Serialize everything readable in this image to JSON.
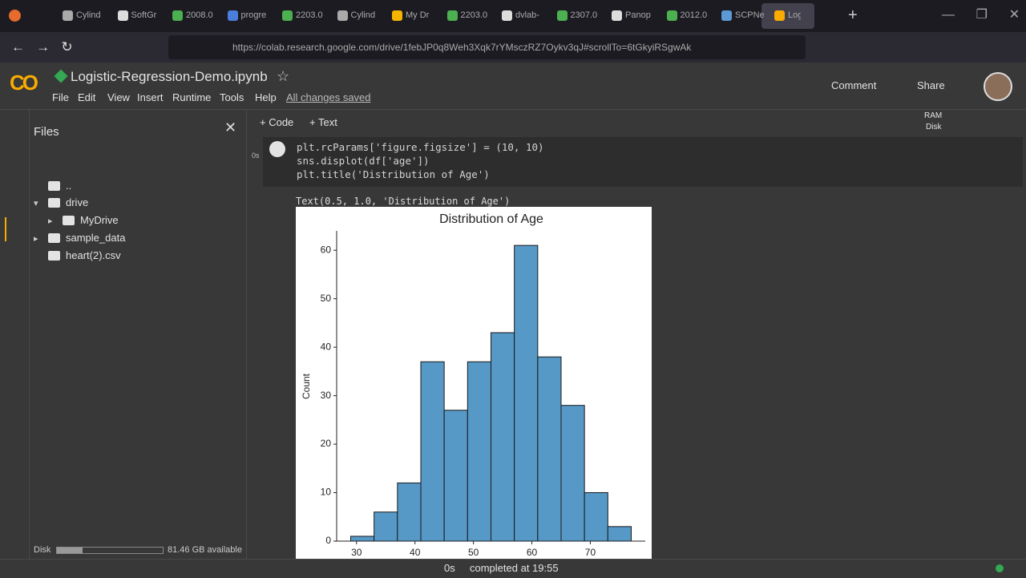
{
  "browser": {
    "tabs": [
      "Cylind",
      "SoftGr",
      "2008.0",
      "progre",
      "2203.0",
      "Cylind",
      "My Dr",
      "2203.0",
      "dvlab-",
      "2307.0",
      "Panop",
      "2012.0",
      "SCPNe",
      "Log"
    ],
    "url": "https://colab.research.google.com/drive/1febJP0q8Weh3Xqk7rYMsczRZ7Oykv3qJ#scrollTo=6tGkyiRSgwAk"
  },
  "header": {
    "title": "Logistic-Regression-Demo.ipynb",
    "menu": [
      "File",
      "Edit",
      "View",
      "Insert",
      "Runtime",
      "Tools",
      "Help"
    ],
    "save_status": "All changes saved",
    "comment": "Comment",
    "share": "Share"
  },
  "toolbar": {
    "add_code": "+ Code",
    "add_text": "+ Text",
    "ram": "RAM",
    "disk": "Disk"
  },
  "sidebar": {
    "title": "Files",
    "tree": [
      "..",
      "drive",
      "MyDrive",
      "sample_data",
      "heart(2).csv"
    ],
    "disk_label": "Disk",
    "disk_available": "81.46 GB available"
  },
  "cell": {
    "exec_time": "0s",
    "code": [
      "plt.rcParams['figure.figsize'] = (10, 10)",
      "sns.displot(df['age'])",
      "plt.title('Distribution of Age')"
    ],
    "output_text": "Text(0.5, 1.0, 'Distribution of Age')"
  },
  "chart_data": {
    "type": "histogram",
    "title": "Distribution of Age",
    "y_label": "Count",
    "bins": [
      29,
      33,
      37,
      41,
      45,
      49,
      53,
      57,
      61,
      65,
      69,
      73,
      77
    ],
    "values": [
      1,
      6,
      12,
      37,
      27,
      37,
      43,
      61,
      38,
      28,
      10,
      3
    ],
    "color": "#5698c6",
    "edge_color": "#1a1a1a",
    "xlim": [
      26.6,
      79.4
    ],
    "xticks": [
      30,
      40,
      50,
      60,
      70
    ],
    "ylim": [
      0,
      64
    ],
    "yticks": [
      0,
      10,
      20,
      30,
      40,
      50,
      60
    ]
  },
  "status": {
    "time": "0s",
    "message": "completed at 19:55"
  }
}
